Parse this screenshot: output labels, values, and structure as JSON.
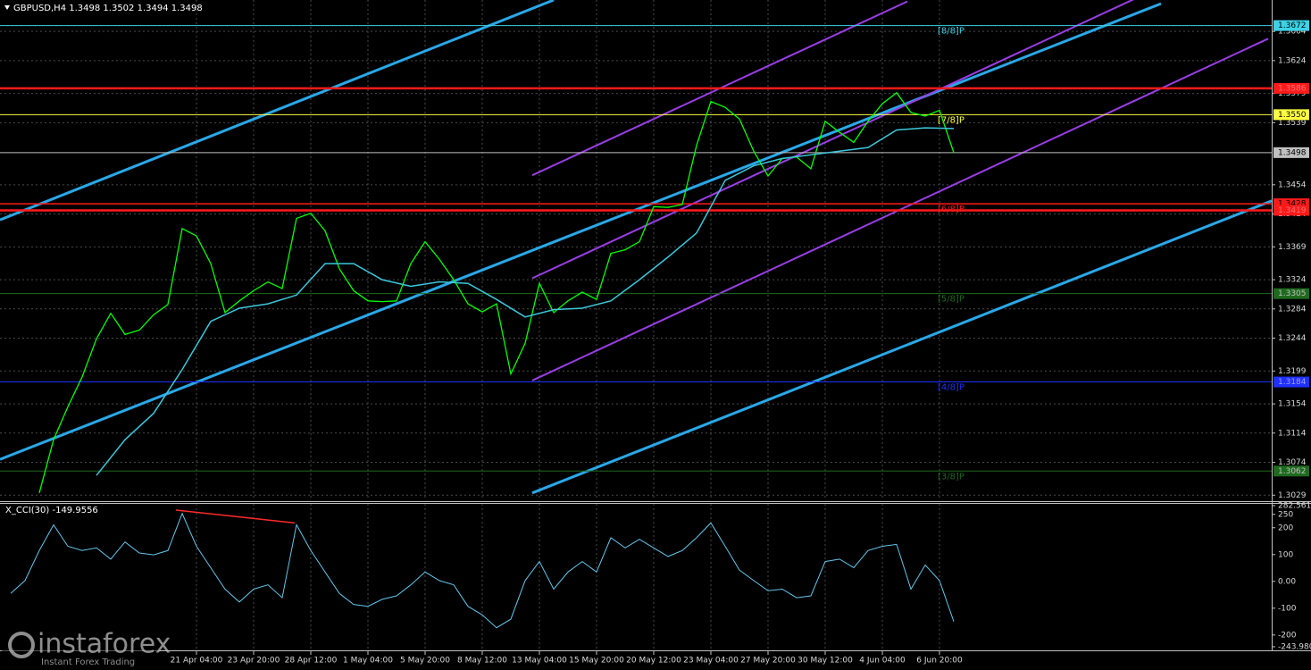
{
  "chart_data": [
    {
      "type": "line",
      "title": "GBPUSD,H4  1.3498 1.3502 1.3494 1.3498",
      "xlim": [
        -55,
        301
      ],
      "xticks": [
        {
          "value": 0,
          "label": "21 Apr 04:00"
        },
        {
          "value": 16,
          "label": "23 Apr 20:00"
        },
        {
          "value": 32,
          "label": "28 Apr 12:00"
        },
        {
          "value": 48,
          "label": "1 May 04:00"
        },
        {
          "value": 64,
          "label": "5 May 20:00"
        },
        {
          "value": 80,
          "label": "8 May 12:00"
        },
        {
          "value": 96,
          "label": "13 May 04:00"
        },
        {
          "value": 112,
          "label": "15 May 20:00"
        },
        {
          "value": 128,
          "label": "20 May 12:00"
        },
        {
          "value": 144,
          "label": "23 May 04:00"
        },
        {
          "value": 160,
          "label": "27 May 20:00"
        },
        {
          "value": 176,
          "label": "30 May 12:00"
        },
        {
          "value": 192,
          "label": "4 Jun 04:00"
        },
        {
          "value": 208,
          "label": "6 Jun 20:00"
        }
      ],
      "ylim": [
        1.3022,
        1.3707
      ],
      "yticks": [
        1.3029,
        1.3074,
        1.3114,
        1.3154,
        1.3199,
        1.3244,
        1.3284,
        1.3324,
        1.3369,
        1.3414,
        1.3454,
        1.3539,
        1.3579,
        1.3624,
        1.3664
      ],
      "grid": true,
      "series": [
        {
          "color": "#00ff00",
          "width": 1.3,
          "x": [
            -44,
            -40,
            -36,
            -32,
            -28,
            -24,
            -20,
            -16,
            -12,
            -8,
            -4,
            0,
            4,
            8,
            12,
            16,
            20,
            24,
            28,
            32,
            36,
            40,
            44,
            48,
            52,
            56,
            60,
            64,
            68,
            72,
            76,
            80,
            84,
            88,
            92,
            96,
            100,
            104,
            108,
            112,
            116,
            120,
            124,
            128,
            132,
            136,
            140,
            144,
            148,
            152,
            156,
            160,
            164,
            168,
            172,
            176,
            180,
            184,
            188,
            192,
            196,
            200,
            204,
            208,
            212
          ],
          "values": [
            1.3032,
            1.3105,
            1.315,
            1.3191,
            1.3243,
            1.3278,
            1.3249,
            1.3255,
            1.3276,
            1.329,
            1.3394,
            1.3384,
            1.3346,
            1.3279,
            1.3295,
            1.3309,
            1.3321,
            1.3312,
            1.3408,
            1.3415,
            1.3391,
            1.3339,
            1.3309,
            1.3295,
            1.3294,
            1.3295,
            1.3346,
            1.3376,
            1.3352,
            1.3324,
            1.3291,
            1.328,
            1.3291,
            1.3195,
            1.3237,
            1.3319,
            1.3279,
            1.3295,
            1.3307,
            1.3297,
            1.336,
            1.3365,
            1.3376,
            1.3424,
            1.3423,
            1.3427,
            1.3508,
            1.3568,
            1.356,
            1.3544,
            1.35,
            1.3466,
            1.349,
            1.3492,
            1.3476,
            1.3541,
            1.3526,
            1.3512,
            1.3541,
            1.3565,
            1.358,
            1.3553,
            1.3548,
            1.3556,
            1.3498
          ]
        },
        {
          "color": "#3cc8dc",
          "width": 1.5,
          "x": [
            -28,
            -20,
            -12,
            -4,
            4,
            12,
            20,
            28,
            36,
            44,
            52,
            60,
            68,
            76,
            84,
            92,
            100,
            108,
            116,
            124,
            132,
            140,
            148,
            156,
            164,
            172,
            180,
            188,
            196,
            204,
            212
          ],
          "values": [
            1.3056,
            1.3105,
            1.3141,
            1.3201,
            1.3267,
            1.3285,
            1.3291,
            1.3303,
            1.3346,
            1.3346,
            1.3324,
            1.3315,
            1.3321,
            1.3319,
            1.3297,
            1.3273,
            1.3283,
            1.3285,
            1.3295,
            1.3324,
            1.3355,
            1.3388,
            1.346,
            1.348,
            1.349,
            1.3495,
            1.35,
            1.3505,
            1.3529,
            1.3532,
            1.3531
          ]
        }
      ],
      "channels": [
        {
          "color": "#29a8e8",
          "width": 3,
          "x": [
            -55,
            100
          ],
          "values": [
            1.3406,
            1.3707
          ]
        },
        {
          "color": "#29a8e8",
          "width": 3,
          "x": [
            -55,
            270
          ],
          "values": [
            1.3078,
            1.3702
          ]
        },
        {
          "color": "#29a8e8",
          "width": 3,
          "x": [
            94,
            301
          ],
          "values": [
            1.3032,
            1.3432
          ]
        },
        {
          "color": "#9a3ee6",
          "width": 2,
          "x": [
            94,
            199
          ],
          "values": [
            1.3467,
            1.3705
          ]
        },
        {
          "color": "#9a3ee6",
          "width": 2,
          "x": [
            94,
            280
          ],
          "values": [
            1.3326,
            1.3748
          ]
        },
        {
          "color": "#9a3ee6",
          "width": 2,
          "x": [
            94,
            300
          ],
          "values": [
            1.3186,
            1.3654
          ]
        }
      ],
      "levels": [
        {
          "price": 1.3672,
          "color": "#3cd2e6",
          "width": 1,
          "text_color": "#000000",
          "tag": "[8/8]P"
        },
        {
          "price": 1.3586,
          "color": "#ff1a1a",
          "width": 2.5,
          "text_color": "#ff7070"
        },
        {
          "price": {
            "value": 1.355,
            "label": "1.3550"
          },
          "color": "#ffff40",
          "width": 1,
          "text_color": "#000000",
          "tag": "[7/8]P"
        },
        {
          "price": 1.3498,
          "color": "#c0c0c0",
          "width": 1,
          "text_color": "#000000"
        },
        {
          "price": 1.3428,
          "color": "#ff1a1a",
          "width": 1.5,
          "text_color": "#000000",
          "tag": "[6/8]P"
        },
        {
          "price": 1.3419,
          "color": "#ff1a1a",
          "width": 2.5,
          "text_color": "#ff7070"
        },
        {
          "price": 1.3305,
          "color": "#1e6a1e",
          "width": 1,
          "text_color": "#c0c0c0",
          "tag": "[5/8]P"
        },
        {
          "price": 1.3184,
          "color": "#2030ff",
          "width": 1,
          "text_color": "#9aa0ff",
          "tag": "[4/8]P"
        },
        {
          "price": 1.3062,
          "color": "#1e6a1e",
          "width": 1,
          "text_color": "#c0c0c0",
          "tag": "[3/8]P"
        }
      ]
    },
    {
      "type": "line",
      "title": "X_CCI(30) -149.9556",
      "xlim": [
        -55,
        301
      ],
      "ylim": [
        -243.98,
        282.5616
      ],
      "yticks": [
        {
          "value": 282.5616,
          "label": "282.5616"
        },
        250,
        200,
        100,
        {
          "value": 0,
          "label": "0.00"
        },
        -100,
        -200,
        {
          "value": -243.98,
          "label": "-243.980"
        }
      ],
      "series": [
        {
          "color": "#63c6ea",
          "width": 1,
          "x": [
            -52,
            -48,
            -44,
            -40,
            -36,
            -32,
            -28,
            -24,
            -20,
            -16,
            -12,
            -8,
            -4,
            0,
            4,
            8,
            12,
            16,
            20,
            24,
            28,
            32,
            36,
            40,
            44,
            48,
            52,
            56,
            60,
            64,
            68,
            72,
            76,
            80,
            84,
            88,
            92,
            96,
            100,
            104,
            108,
            112,
            116,
            120,
            124,
            128,
            132,
            136,
            140,
            144,
            148,
            152,
            156,
            160,
            164,
            168,
            172,
            176,
            180,
            184,
            188,
            192,
            196,
            200,
            204,
            208,
            212
          ],
          "values": [
            -45,
            3,
            115,
            211,
            131,
            115,
            125,
            83,
            147,
            106,
            99,
            115,
            253,
            131,
            51,
            -29,
            -77,
            -29,
            -13,
            -61,
            211,
            115,
            35,
            -45,
            -86,
            -93,
            -67,
            -54,
            -13,
            35,
            3,
            -13,
            -93,
            -125,
            -173,
            -141,
            3,
            74,
            -29,
            35,
            74,
            35,
            163,
            125,
            157,
            125,
            93,
            115,
            163,
            218,
            131,
            42,
            3,
            -35,
            -29,
            -61,
            -54,
            74,
            83,
            51,
            115,
            131,
            138,
            -29,
            61,
            3,
            -150
          ]
        }
      ],
      "trendline": {
        "color": "#ff2a2a",
        "width": 1.5,
        "x": [
          -5.75,
          27.5
        ],
        "values": [
          266,
          218
        ]
      }
    },
    {
      "watermark": {
        "brand": "instaforex",
        "tagline": "Instant Forex Trading"
      }
    }
  ]
}
